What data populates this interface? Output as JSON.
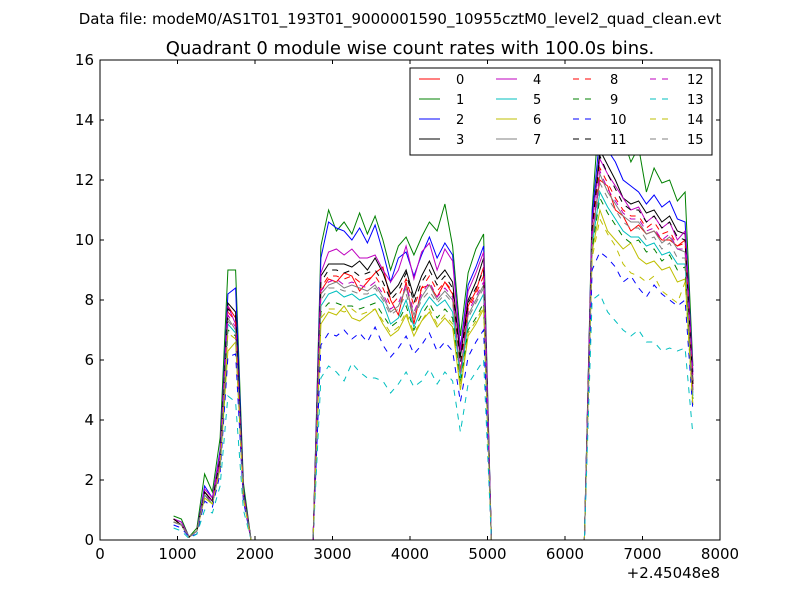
{
  "figure": {
    "suptitle": "Data file: modeM0/AS1T01_193T01_9000001590_10955cztM0_level2_quad_clean.evt"
  },
  "chart_data": {
    "type": "line",
    "title": "Quadrant 0 module wise count rates with 100.0s bins.",
    "xlabel": "",
    "ylabel": "",
    "x_offset_label": "+2.45048e8",
    "xlim": [
      0,
      8000
    ],
    "ylim": [
      0,
      16
    ],
    "x_ticks": [
      0,
      1000,
      2000,
      3000,
      4000,
      5000,
      6000,
      7000,
      8000
    ],
    "y_ticks": [
      0,
      2,
      4,
      6,
      8,
      10,
      12,
      14,
      16
    ],
    "x_tick_labels": [
      "0",
      "1000",
      "2000",
      "3000",
      "4000",
      "5000",
      "6000",
      "7000",
      "8000"
    ],
    "y_tick_labels": [
      "0",
      "2",
      "4",
      "6",
      "8",
      "10",
      "12",
      "14",
      "16"
    ],
    "legend_position": "top-right",
    "legend_columns": 4,
    "x": [
      950,
      1050,
      1150,
      1250,
      1350,
      1450,
      1550,
      1650,
      1750,
      1850,
      1950,
      2050,
      2150,
      2250,
      2350,
      2450,
      2550,
      2650,
      2750,
      2850,
      2950,
      3050,
      3150,
      3250,
      3350,
      3450,
      3550,
      3650,
      3750,
      3850,
      3950,
      4050,
      4150,
      4250,
      4350,
      4450,
      4550,
      4650,
      4750,
      4850,
      4950,
      5050,
      5150,
      5250,
      5350,
      5450,
      5550,
      5650,
      5750,
      5850,
      5950,
      6050,
      6150,
      6250,
      6350,
      6450,
      6550,
      6650,
      6750,
      6850,
      6950,
      7050,
      7150,
      7250,
      7350,
      7450,
      7550,
      7650
    ],
    "series": [
      {
        "name": "0",
        "color": "#ff0000",
        "dash": "solid",
        "values": [
          0.7,
          0.5,
          0.1,
          0.3,
          1.6,
          1.3,
          2.6,
          7.8,
          7.4,
          1.6,
          0,
          0,
          0,
          0,
          0,
          0,
          0,
          0,
          0,
          8.3,
          8.7,
          8.6,
          8.9,
          8.8,
          8.3,
          8.6,
          8.9,
          9.1,
          8.0,
          7.5,
          8.6,
          7.2,
          8.4,
          8.5,
          8.1,
          8.6,
          8.2,
          5.5,
          7.8,
          8.3,
          9.1,
          0,
          0,
          0,
          0,
          0,
          0,
          0,
          0,
          0,
          0,
          0,
          0,
          0,
          10.2,
          12.0,
          11.8,
          11.0,
          10.8,
          10.3,
          10.5,
          10.2,
          10.3,
          10.0,
          10.0,
          9.8,
          10.0,
          5.2
        ]
      },
      {
        "name": "1",
        "color": "#008000",
        "dash": "solid",
        "values": [
          0.8,
          0.7,
          0.1,
          0.4,
          2.2,
          1.6,
          3.4,
          9.0,
          9.0,
          1.9,
          0,
          0,
          0,
          0,
          0,
          0,
          0,
          0,
          0,
          9.8,
          11.0,
          10.3,
          10.6,
          10.2,
          10.9,
          10.2,
          10.8,
          10.0,
          9.0,
          9.8,
          10.1,
          9.5,
          10.1,
          10.6,
          10.3,
          11.2,
          9.8,
          6.8,
          8.9,
          9.7,
          10.2,
          0,
          0,
          0,
          0,
          0,
          0,
          0,
          0,
          0,
          0,
          0,
          0,
          0,
          11.0,
          14.6,
          14.2,
          13.6,
          13.4,
          12.6,
          13.1,
          11.6,
          12.4,
          11.9,
          12.0,
          11.3,
          11.6,
          5.8
        ]
      },
      {
        "name": "2",
        "color": "#0000ff",
        "dash": "solid",
        "values": [
          0.7,
          0.6,
          0.1,
          0.3,
          1.8,
          1.4,
          3.0,
          8.2,
          8.4,
          1.7,
          0,
          0,
          0,
          0,
          0,
          0,
          0,
          0,
          0,
          9.4,
          10.6,
          10.4,
          10.3,
          10.0,
          10.4,
          9.9,
          10.5,
          9.6,
          8.6,
          9.4,
          9.6,
          8.8,
          9.5,
          10.1,
          9.4,
          9.9,
          9.5,
          6.4,
          8.5,
          9.1,
          9.8,
          0,
          0,
          0,
          0,
          0,
          0,
          0,
          0,
          0,
          0,
          0,
          0,
          0,
          10.8,
          13.5,
          13.0,
          12.6,
          12.0,
          11.8,
          11.6,
          11.2,
          11.5,
          11.1,
          11.3,
          10.7,
          10.6,
          5.6
        ]
      },
      {
        "name": "3",
        "color": "#000000",
        "dash": "solid",
        "values": [
          0.7,
          0.5,
          0.1,
          0.3,
          1.6,
          1.3,
          2.7,
          7.9,
          7.6,
          1.6,
          0,
          0,
          0,
          0,
          0,
          0,
          0,
          0,
          0,
          8.8,
          9.2,
          9.2,
          9.2,
          9.1,
          9.3,
          9.0,
          9.4,
          8.9,
          8.2,
          8.5,
          9.0,
          8.1,
          8.8,
          9.3,
          8.7,
          9.0,
          8.6,
          6.1,
          8.0,
          8.6,
          9.4,
          0,
          0,
          0,
          0,
          0,
          0,
          0,
          0,
          0,
          0,
          0,
          0,
          0,
          10.5,
          13.0,
          12.5,
          12.0,
          11.4,
          11.2,
          11.3,
          10.9,
          11.0,
          10.6,
          10.8,
          10.3,
          10.2,
          5.3
        ]
      },
      {
        "name": "4",
        "color": "#bf00bf",
        "dash": "solid",
        "values": [
          0.7,
          0.6,
          0.1,
          0.3,
          1.7,
          1.4,
          2.9,
          7.8,
          7.2,
          1.6,
          0,
          0,
          0,
          0,
          0,
          0,
          0,
          0,
          0,
          8.9,
          9.6,
          9.7,
          9.5,
          9.7,
          9.4,
          9.4,
          9.5,
          9.0,
          8.6,
          9.0,
          9.8,
          8.7,
          9.6,
          9.9,
          9.0,
          9.7,
          9.3,
          6.3,
          8.3,
          8.9,
          9.6,
          0,
          0,
          0,
          0,
          0,
          0,
          0,
          0,
          0,
          0,
          0,
          0,
          0,
          10.6,
          12.7,
          12.2,
          11.8,
          11.4,
          11.0,
          11.1,
          10.6,
          10.8,
          10.4,
          10.6,
          10.0,
          10.3,
          5.5
        ]
      },
      {
        "name": "5",
        "color": "#00bfbf",
        "dash": "solid",
        "values": [
          0.6,
          0.5,
          0.1,
          0.3,
          1.5,
          1.2,
          2.5,
          7.2,
          6.9,
          1.5,
          0,
          0,
          0,
          0,
          0,
          0,
          0,
          0,
          0,
          7.8,
          8.2,
          8.3,
          8.1,
          8.2,
          8.0,
          8.1,
          8.2,
          7.9,
          7.2,
          7.4,
          8.0,
          7.1,
          7.7,
          8.1,
          7.8,
          8.0,
          7.6,
          5.4,
          7.2,
          7.7,
          8.2,
          0,
          0,
          0,
          0,
          0,
          0,
          0,
          0,
          0,
          0,
          0,
          0,
          0,
          9.8,
          11.6,
          11.1,
          10.7,
          10.3,
          10.1,
          10.1,
          9.8,
          9.9,
          9.5,
          9.6,
          9.2,
          9.2,
          4.8
        ]
      },
      {
        "name": "6",
        "color": "#bfbf00",
        "dash": "solid",
        "values": [
          0.6,
          0.5,
          0.1,
          0.3,
          1.4,
          1.2,
          2.4,
          6.3,
          6.6,
          1.4,
          0,
          0,
          0,
          0,
          0,
          0,
          0,
          0,
          0,
          7.2,
          7.6,
          7.5,
          7.8,
          7.4,
          7.3,
          7.5,
          7.7,
          7.2,
          6.8,
          7.0,
          7.5,
          6.8,
          7.3,
          7.6,
          7.1,
          7.4,
          7.1,
          5.0,
          6.8,
          7.2,
          7.7,
          0,
          0,
          0,
          0,
          0,
          0,
          0,
          0,
          0,
          0,
          0,
          0,
          0,
          9.6,
          11.0,
          10.3,
          10.0,
          9.7,
          9.9,
          9.4,
          9.2,
          9.3,
          9.0,
          9.1,
          8.6,
          8.7,
          4.5
        ]
      },
      {
        "name": "7",
        "color": "#808080",
        "dash": "solid",
        "values": [
          0.6,
          0.5,
          0.1,
          0.3,
          1.5,
          1.3,
          2.6,
          7.4,
          7.0,
          1.5,
          0,
          0,
          0,
          0,
          0,
          0,
          0,
          0,
          0,
          8.2,
          8.5,
          8.6,
          8.4,
          8.5,
          8.4,
          8.3,
          8.5,
          8.1,
          7.6,
          7.8,
          8.4,
          7.5,
          8.1,
          8.5,
          8.0,
          8.3,
          8.0,
          5.6,
          7.5,
          8.0,
          8.5,
          0,
          0,
          0,
          0,
          0,
          0,
          0,
          0,
          0,
          0,
          0,
          0,
          0,
          10.0,
          12.2,
          11.6,
          11.2,
          10.8,
          10.6,
          10.6,
          10.2,
          10.3,
          9.9,
          10.1,
          9.7,
          9.6,
          5.0
        ]
      },
      {
        "name": "8",
        "color": "#ff0000",
        "dash": "dashed",
        "values": [
          0.7,
          0.5,
          0.1,
          0.3,
          1.6,
          1.3,
          2.6,
          7.6,
          7.3,
          1.6,
          0,
          0,
          0,
          0,
          0,
          0,
          0,
          0,
          0,
          8.4,
          8.8,
          8.8,
          8.7,
          8.8,
          8.6,
          8.7,
          8.8,
          8.4,
          7.8,
          8.1,
          8.7,
          7.8,
          8.4,
          8.8,
          8.3,
          8.6,
          8.3,
          5.7,
          7.7,
          8.2,
          8.8,
          0,
          0,
          0,
          0,
          0,
          0,
          0,
          0,
          0,
          0,
          0,
          0,
          0,
          10.3,
          12.4,
          11.9,
          11.4,
          11.0,
          10.8,
          10.8,
          10.4,
          10.6,
          10.2,
          10.3,
          9.8,
          9.9,
          5.1
        ]
      },
      {
        "name": "9",
        "color": "#008000",
        "dash": "dashed",
        "values": [
          0.6,
          0.5,
          0.1,
          0.3,
          1.5,
          1.2,
          2.5,
          7.0,
          6.8,
          1.5,
          0,
          0,
          0,
          0,
          0,
          0,
          0,
          0,
          0,
          7.6,
          7.9,
          7.9,
          7.8,
          7.8,
          7.7,
          7.8,
          7.9,
          7.5,
          7.1,
          7.3,
          7.8,
          7.0,
          7.5,
          7.9,
          7.4,
          7.7,
          7.4,
          5.2,
          7.0,
          7.4,
          7.9,
          0,
          0,
          0,
          0,
          0,
          0,
          0,
          0,
          0,
          0,
          0,
          0,
          0,
          9.7,
          11.4,
          10.9,
          10.5,
          10.1,
          9.9,
          10.0,
          9.6,
          9.7,
          9.3,
          9.5,
          9.0,
          9.1,
          4.7
        ]
      },
      {
        "name": "10",
        "color": "#0000ff",
        "dash": "dashed",
        "values": [
          0.5,
          0.4,
          0.1,
          0.2,
          1.3,
          1.1,
          2.2,
          6.1,
          6.2,
          1.3,
          0,
          0,
          0,
          0,
          0,
          0,
          0,
          0,
          0,
          6.5,
          6.9,
          6.8,
          7.0,
          6.7,
          6.9,
          6.6,
          7.1,
          6.5,
          6.1,
          6.4,
          6.8,
          6.2,
          6.5,
          6.9,
          6.3,
          6.6,
          6.3,
          4.6,
          6.1,
          6.6,
          7.0,
          0,
          0,
          0,
          0,
          0,
          0,
          0,
          0,
          0,
          0,
          0,
          0,
          0,
          9.0,
          9.6,
          9.4,
          9.1,
          8.6,
          8.8,
          8.4,
          8.1,
          8.5,
          8.2,
          8.0,
          7.8,
          8.0,
          4.3
        ]
      },
      {
        "name": "11",
        "color": "#000000",
        "dash": "dashed",
        "values": [
          0.7,
          0.5,
          0.1,
          0.3,
          1.6,
          1.3,
          2.7,
          7.7,
          7.5,
          1.6,
          0,
          0,
          0,
          0,
          0,
          0,
          0,
          0,
          0,
          8.6,
          9.0,
          9.0,
          8.9,
          9.0,
          8.8,
          8.9,
          9.0,
          8.6,
          8.0,
          8.3,
          8.9,
          7.9,
          8.6,
          9.0,
          8.5,
          8.8,
          8.4,
          5.9,
          7.9,
          8.4,
          9.0,
          0,
          0,
          0,
          0,
          0,
          0,
          0,
          0,
          0,
          0,
          0,
          0,
          0,
          10.4,
          12.8,
          12.2,
          11.7,
          11.2,
          11.0,
          11.0,
          10.6,
          10.8,
          10.4,
          10.6,
          10.1,
          10.0,
          5.2
        ]
      },
      {
        "name": "12",
        "color": "#bf00bf",
        "dash": "dashed",
        "values": [
          0.6,
          0.5,
          0.1,
          0.3,
          1.5,
          1.3,
          2.6,
          7.5,
          7.1,
          1.5,
          0,
          0,
          0,
          0,
          0,
          0,
          0,
          0,
          0,
          8.3,
          8.6,
          8.7,
          8.5,
          8.6,
          8.5,
          8.4,
          8.6,
          8.2,
          7.7,
          7.9,
          8.5,
          7.6,
          8.2,
          8.6,
          8.1,
          8.4,
          8.1,
          5.6,
          7.6,
          8.1,
          8.6,
          0,
          0,
          0,
          0,
          0,
          0,
          0,
          0,
          0,
          0,
          0,
          0,
          0,
          10.1,
          12.3,
          11.7,
          11.3,
          10.9,
          10.7,
          10.7,
          10.3,
          10.4,
          10.0,
          10.2,
          9.7,
          9.7,
          5.0
        ]
      },
      {
        "name": "13",
        "color": "#00bfbf",
        "dash": "dashed",
        "values": [
          0.4,
          0.3,
          0.05,
          0.2,
          1.0,
          0.9,
          1.8,
          4.8,
          4.6,
          1.0,
          0,
          0,
          0,
          0,
          0,
          0,
          0,
          0,
          0,
          5.4,
          5.8,
          5.6,
          5.3,
          5.9,
          5.6,
          5.4,
          5.4,
          5.3,
          4.9,
          5.2,
          5.6,
          5.1,
          5.3,
          5.7,
          5.2,
          5.6,
          5.3,
          3.6,
          5.2,
          5.6,
          6.0,
          0,
          0,
          0,
          0,
          0,
          0,
          0,
          0,
          0,
          0,
          0,
          0,
          0,
          8.0,
          8.2,
          7.6,
          7.3,
          7.0,
          6.8,
          7.0,
          6.6,
          6.6,
          6.3,
          6.4,
          6.3,
          6.4,
          3.5
        ]
      },
      {
        "name": "14",
        "color": "#bfbf00",
        "dash": "dashed",
        "values": [
          0.6,
          0.5,
          0.1,
          0.3,
          1.4,
          1.2,
          2.4,
          6.9,
          6.7,
          1.4,
          0,
          0,
          0,
          0,
          0,
          0,
          0,
          0,
          0,
          7.4,
          7.7,
          7.7,
          7.6,
          7.7,
          7.5,
          7.6,
          7.7,
          7.3,
          6.9,
          7.1,
          7.6,
          6.9,
          7.3,
          7.7,
          7.2,
          7.5,
          7.2,
          5.1,
          6.9,
          7.3,
          7.8,
          0,
          0,
          0,
          0,
          0,
          0,
          0,
          0,
          0,
          0,
          0,
          0,
          0,
          9.4,
          10.7,
          10.2,
          9.8,
          9.2,
          8.9,
          8.8,
          8.6,
          8.8,
          8.3,
          8.1,
          7.9,
          8.6,
          4.4
        ]
      },
      {
        "name": "15",
        "color": "#808080",
        "dash": "dashed",
        "values": [
          0.6,
          0.5,
          0.1,
          0.3,
          1.5,
          1.2,
          2.5,
          7.3,
          7.0,
          1.5,
          0,
          0,
          0,
          0,
          0,
          0,
          0,
          0,
          0,
          8.0,
          8.4,
          8.4,
          8.3,
          8.3,
          8.2,
          8.2,
          8.4,
          8.0,
          7.5,
          7.7,
          8.2,
          7.4,
          8.0,
          8.3,
          7.9,
          8.2,
          7.9,
          5.5,
          7.4,
          7.9,
          8.4,
          0,
          0,
          0,
          0,
          0,
          0,
          0,
          0,
          0,
          0,
          0,
          0,
          0,
          9.9,
          11.9,
          11.4,
          11.0,
          10.6,
          10.4,
          10.4,
          10.0,
          10.1,
          9.7,
          9.9,
          9.4,
          9.4,
          4.9
        ]
      }
    ]
  }
}
